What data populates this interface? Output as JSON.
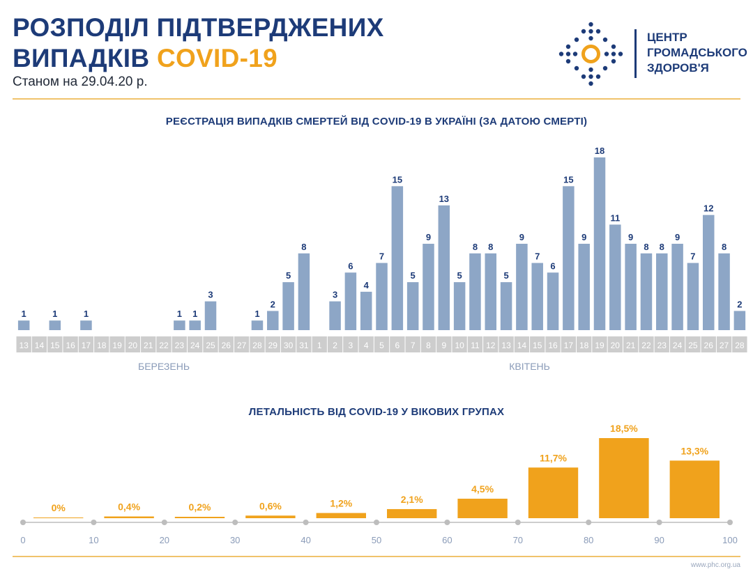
{
  "header": {
    "title_line1": "РОЗПОДІЛ ПІДТВЕРДЖЕНИХ",
    "title_line2_main": "ВИПАДКІВ",
    "title_line2_accent": "COVID-19",
    "date": "Станом на 29.04.20 р."
  },
  "logo": {
    "icon": "dotted-circle-logo-icon",
    "line1": "ЦЕНТР",
    "line2": "ГРОМАДСЬКОГО",
    "line3": "ЗДОРОВ'Я"
  },
  "footer": {
    "url": "www.phc.org.ua"
  },
  "colors": {
    "navy": "#1d3b78",
    "orange": "#f0a21c",
    "bar_blue": "#8da6c6",
    "axis_gray": "#cdcdcd"
  },
  "chart_data": [
    {
      "type": "bar",
      "title": "РЕЄСТРАЦІЯ ВИПАДКІВ СМЕРТЕЙ ВІД COVID-19 В УКРАЇНІ (ЗА ДАТОЮ СМЕРТІ)",
      "groups": [
        {
          "label": "БЕРЕЗЕНЬ",
          "categories": [
            "13",
            "14",
            "15",
            "16",
            "17",
            "18",
            "19",
            "20",
            "21",
            "22",
            "23",
            "24",
            "25",
            "26",
            "27",
            "28",
            "29",
            "30",
            "31"
          ],
          "values": [
            1,
            0,
            1,
            0,
            1,
            0,
            0,
            0,
            0,
            0,
            1,
            1,
            3,
            0,
            0,
            1,
            2,
            5,
            8
          ]
        },
        {
          "label": "КВІТЕНЬ",
          "categories": [
            "1",
            "2",
            "3",
            "4",
            "5",
            "6",
            "7",
            "8",
            "9",
            "10",
            "11",
            "12",
            "13",
            "14",
            "15",
            "16",
            "17",
            "18",
            "19",
            "20",
            "21",
            "22",
            "23",
            "24",
            "25",
            "26",
            "27",
            "28"
          ],
          "values": [
            0,
            3,
            6,
            4,
            7,
            15,
            5,
            9,
            13,
            5,
            8,
            8,
            5,
            9,
            7,
            6,
            15,
            9,
            18,
            11,
            9,
            8,
            8,
            9,
            7,
            12,
            8,
            2
          ]
        }
      ],
      "ylim": [
        0,
        18
      ],
      "grid": false
    },
    {
      "type": "bar",
      "title": "ЛЕТАЛЬНІСТЬ ВІД COVID-19 У ВІКОВИХ ГРУПАХ",
      "x_ticks": [
        "0",
        "10",
        "20",
        "30",
        "40",
        "50",
        "60",
        "70",
        "80",
        "90",
        "100"
      ],
      "bins": [
        [
          0,
          10
        ],
        [
          10,
          20
        ],
        [
          20,
          30
        ],
        [
          30,
          40
        ],
        [
          40,
          50
        ],
        [
          50,
          60
        ],
        [
          60,
          70
        ],
        [
          70,
          80
        ],
        [
          80,
          90
        ],
        [
          90,
          100
        ]
      ],
      "values": [
        0,
        0.4,
        0.2,
        0.6,
        1.2,
        2.1,
        4.5,
        11.7,
        18.5,
        13.3
      ],
      "value_labels": [
        "0%",
        "0,4%",
        "0,2%",
        "0,6%",
        "1,2%",
        "2,1%",
        "4,5%",
        "11,7%",
        "18,5%",
        "13,3%"
      ],
      "ylim": [
        0,
        18.5
      ],
      "unit": "%"
    }
  ]
}
